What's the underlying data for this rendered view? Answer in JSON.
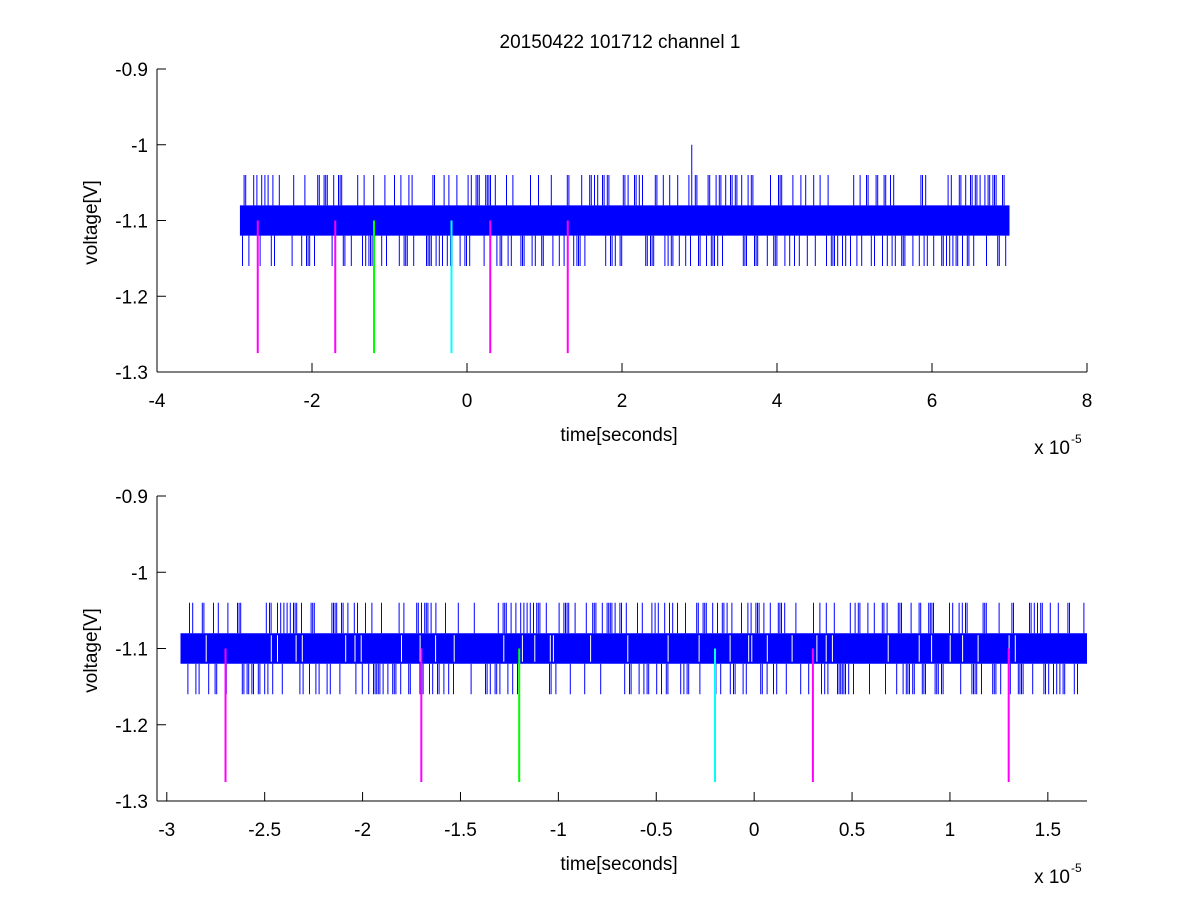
{
  "figure_title": "20150422 101712 channel 1",
  "chart_data": [
    {
      "type": "line",
      "title": "20150422 101712 channel 1",
      "xlabel": "time[seconds]",
      "ylabel": "voltage[V]",
      "x_multiplier_text": "x 10",
      "x_multiplier_exponent": "-5",
      "xlim": [
        -4,
        8
      ],
      "ylim": [
        -1.3,
        -0.9
      ],
      "y_reversed_ticks": false,
      "xticks": [
        -4,
        -2,
        0,
        2,
        4,
        6,
        8
      ],
      "xtick_labels": [
        "-4",
        "-2",
        "0",
        "2",
        "4",
        "6",
        "8"
      ],
      "yticks": [
        -0.9,
        -1.0,
        -1.1,
        -1.2,
        -1.3
      ],
      "ytick_labels": [
        "-0.9",
        "-1",
        "-1.1",
        "-1.2",
        "-1.3"
      ],
      "grid": false,
      "signal": {
        "x_range": [
          -2.93,
          7.0
        ],
        "band": [
          -1.12,
          -1.08
        ],
        "spikes_up": -1.04,
        "spikes_down": -1.16,
        "max_spike": {
          "x": 2.9,
          "y": -1.0
        },
        "color": "#0000ff"
      },
      "markers": [
        {
          "x": -2.7,
          "y_top": -1.1,
          "y_bottom": -1.275,
          "color": "#ff00ff"
        },
        {
          "x": -1.7,
          "y_top": -1.1,
          "y_bottom": -1.275,
          "color": "#ff00ff"
        },
        {
          "x": -1.2,
          "y_top": -1.1,
          "y_bottom": -1.275,
          "color": "#00ff00"
        },
        {
          "x": -0.2,
          "y_top": -1.1,
          "y_bottom": -1.275,
          "color": "#00ffff"
        },
        {
          "x": 0.3,
          "y_top": -1.1,
          "y_bottom": -1.275,
          "color": "#ff00ff"
        },
        {
          "x": 1.3,
          "y_top": -1.1,
          "y_bottom": -1.275,
          "color": "#ff00ff"
        }
      ]
    },
    {
      "type": "line",
      "title": "",
      "xlabel": "time[seconds]",
      "ylabel": "voltage[V]",
      "x_multiplier_text": "x 10",
      "x_multiplier_exponent": "-5",
      "xlim": [
        -3.05,
        1.7
      ],
      "ylim": [
        -1.3,
        -0.9
      ],
      "xticks": [
        -3,
        -2.5,
        -2,
        -1.5,
        -1,
        -0.5,
        0,
        0.5,
        1,
        1.5
      ],
      "xtick_labels": [
        "-3",
        "-2.5",
        "-2",
        "-1.5",
        "-1",
        "-0.5",
        "0",
        "0.5",
        "1",
        "1.5"
      ],
      "yticks": [
        -0.9,
        -1.0,
        -1.1,
        -1.2,
        -1.3
      ],
      "ytick_labels": [
        "-0.9",
        "-1",
        "-1.1",
        "-1.2",
        "-1.3"
      ],
      "grid": false,
      "signal": {
        "x_range": [
          -2.93,
          1.7
        ],
        "band": [
          -1.12,
          -1.08
        ],
        "spikes_up": -1.04,
        "spikes_down": -1.16,
        "color": "#0000ff"
      },
      "markers": [
        {
          "x": -2.7,
          "y_top": -1.1,
          "y_bottom": -1.275,
          "color": "#ff00ff"
        },
        {
          "x": -1.7,
          "y_top": -1.1,
          "y_bottom": -1.275,
          "color": "#ff00ff"
        },
        {
          "x": -1.2,
          "y_top": -1.1,
          "y_bottom": -1.275,
          "color": "#00ff00"
        },
        {
          "x": -0.2,
          "y_top": -1.1,
          "y_bottom": -1.275,
          "color": "#00ffff"
        },
        {
          "x": 0.3,
          "y_top": -1.1,
          "y_bottom": -1.275,
          "color": "#ff00ff"
        },
        {
          "x": 1.3,
          "y_top": -1.1,
          "y_bottom": -1.275,
          "color": "#ff00ff"
        }
      ]
    }
  ]
}
